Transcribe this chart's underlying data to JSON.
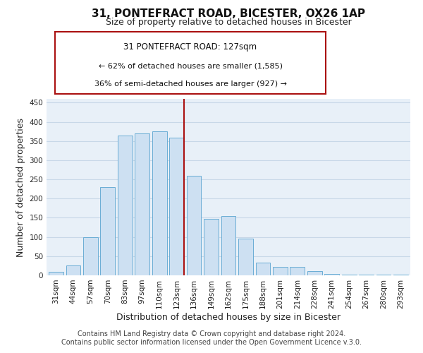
{
  "title": "31, PONTEFRACT ROAD, BICESTER, OX26 1AP",
  "subtitle": "Size of property relative to detached houses in Bicester",
  "xlabel": "Distribution of detached houses by size in Bicester",
  "ylabel": "Number of detached properties",
  "bar_labels": [
    "31sqm",
    "44sqm",
    "57sqm",
    "70sqm",
    "83sqm",
    "97sqm",
    "110sqm",
    "123sqm",
    "136sqm",
    "149sqm",
    "162sqm",
    "175sqm",
    "188sqm",
    "201sqm",
    "214sqm",
    "228sqm",
    "241sqm",
    "254sqm",
    "267sqm",
    "280sqm",
    "293sqm"
  ],
  "bar_values": [
    10,
    25,
    100,
    230,
    365,
    370,
    375,
    358,
    260,
    148,
    155,
    95,
    34,
    22,
    22,
    11,
    4,
    2,
    2,
    1,
    2
  ],
  "bar_color": "#cde0f2",
  "bar_edge_color": "#6aadd5",
  "vline_color": "#aa1111",
  "ylim": [
    0,
    460
  ],
  "yticks": [
    0,
    50,
    100,
    150,
    200,
    250,
    300,
    350,
    400,
    450
  ],
  "annotation_title": "31 PONTEFRACT ROAD: 127sqm",
  "annotation_line1": "← 62% of detached houses are smaller (1,585)",
  "annotation_line2": "36% of semi-detached houses are larger (927) →",
  "annotation_box_color": "#ffffff",
  "annotation_box_edge": "#aa1111",
  "footer_line1": "Contains HM Land Registry data © Crown copyright and database right 2024.",
  "footer_line2": "Contains public sector information licensed under the Open Government Licence v.3.0.",
  "background_color": "#ffffff",
  "plot_bg_color": "#e8f0f8",
  "grid_color": "#c8d8e8",
  "title_fontsize": 11,
  "subtitle_fontsize": 9,
  "axis_label_fontsize": 9,
  "tick_fontsize": 7.5,
  "footer_fontsize": 7,
  "annot_title_fontsize": 8.5,
  "annot_text_fontsize": 8
}
